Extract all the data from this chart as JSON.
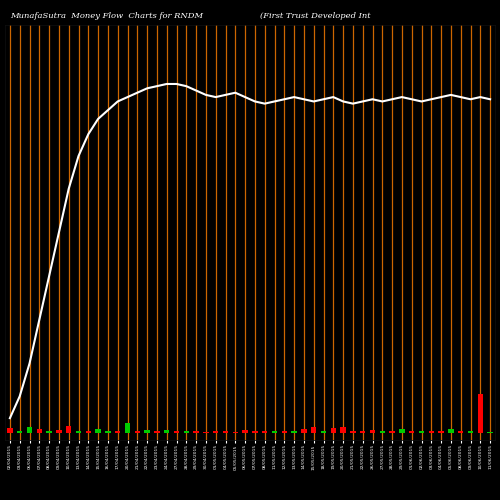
{
  "title_left": "MunafaSutra  Money Flow  Charts for RNDM",
  "title_right": "(First Trust Developed Int",
  "background_color": "#000000",
  "bar_color_red": "#ff0000",
  "bar_color_green": "#00cc00",
  "line_color": "#ffffff",
  "stem_color": "#cc6600",
  "n_bars": 50,
  "line_values": [
    -0.95,
    -0.85,
    -0.7,
    -0.5,
    -0.3,
    -0.1,
    0.1,
    0.25,
    0.35,
    0.42,
    0.46,
    0.5,
    0.52,
    0.54,
    0.56,
    0.57,
    0.58,
    0.58,
    0.57,
    0.55,
    0.53,
    0.52,
    0.53,
    0.54,
    0.52,
    0.5,
    0.49,
    0.5,
    0.51,
    0.52,
    0.51,
    0.5,
    0.51,
    0.52,
    0.5,
    0.49,
    0.5,
    0.51,
    0.5,
    0.51,
    0.52,
    0.51,
    0.5,
    0.51,
    0.52,
    0.53,
    0.52,
    0.51,
    0.52,
    0.51
  ],
  "bar_heights": [
    0.025,
    0.01,
    0.03,
    0.02,
    0.012,
    0.015,
    0.035,
    0.01,
    0.012,
    0.02,
    0.01,
    0.012,
    0.05,
    0.01,
    0.015,
    0.01,
    0.015,
    0.01,
    0.012,
    0.01,
    0.008,
    0.012,
    0.01,
    0.008,
    0.015,
    0.012,
    0.01,
    0.012,
    0.01,
    0.012,
    0.02,
    0.03,
    0.01,
    0.025,
    0.03,
    0.012,
    0.01,
    0.015,
    0.01,
    0.012,
    0.02,
    0.01,
    0.012,
    0.01,
    0.012,
    0.02,
    0.01,
    0.012,
    0.18,
    0.008
  ],
  "bar_colors": [
    "red",
    "green",
    "green",
    "red",
    "green",
    "red",
    "red",
    "green",
    "red",
    "green",
    "green",
    "red",
    "green",
    "red",
    "green",
    "red",
    "green",
    "red",
    "green",
    "red",
    "red",
    "red",
    "red",
    "red",
    "red",
    "red",
    "red",
    "green",
    "red",
    "green",
    "red",
    "red",
    "green",
    "red",
    "red",
    "red",
    "red",
    "red",
    "green",
    "red",
    "green",
    "red",
    "green",
    "red",
    "red",
    "green",
    "red",
    "green",
    "red",
    "green"
  ],
  "xlabels": [
    "02/04/2015",
    "03/04/2015",
    "06/04/2015",
    "07/04/2015",
    "08/04/2015",
    "09/04/2015",
    "10/04/2015",
    "13/04/2015",
    "14/04/2015",
    "15/04/2015",
    "16/04/2015",
    "17/04/2015",
    "20/04/2015",
    "21/04/2015",
    "22/04/2015",
    "23/04/2015",
    "24/04/2015",
    "27/04/2015",
    "28/04/2015",
    "29/04/2015",
    "30/04/2015",
    "01/05/2015",
    "04/05/2015",
    "05/05/2015",
    "06/05/2015",
    "07/05/2015",
    "08/05/2015",
    "11/05/2015",
    "12/05/2015",
    "13/05/2015",
    "14/05/2015",
    "15/05/2015",
    "18/05/2015",
    "19/05/2015",
    "20/05/2015",
    "21/05/2015",
    "22/05/2015",
    "26/05/2015",
    "27/05/2015",
    "28/05/2015",
    "29/05/2015",
    "01/06/2015",
    "02/06/2015",
    "03/06/2015",
    "04/06/2015",
    "05/06/2015",
    "08/06/2015",
    "09/06/2015",
    "10/06/2015",
    "11/06/2015"
  ],
  "ymin": -1.05,
  "ymax": 0.85
}
